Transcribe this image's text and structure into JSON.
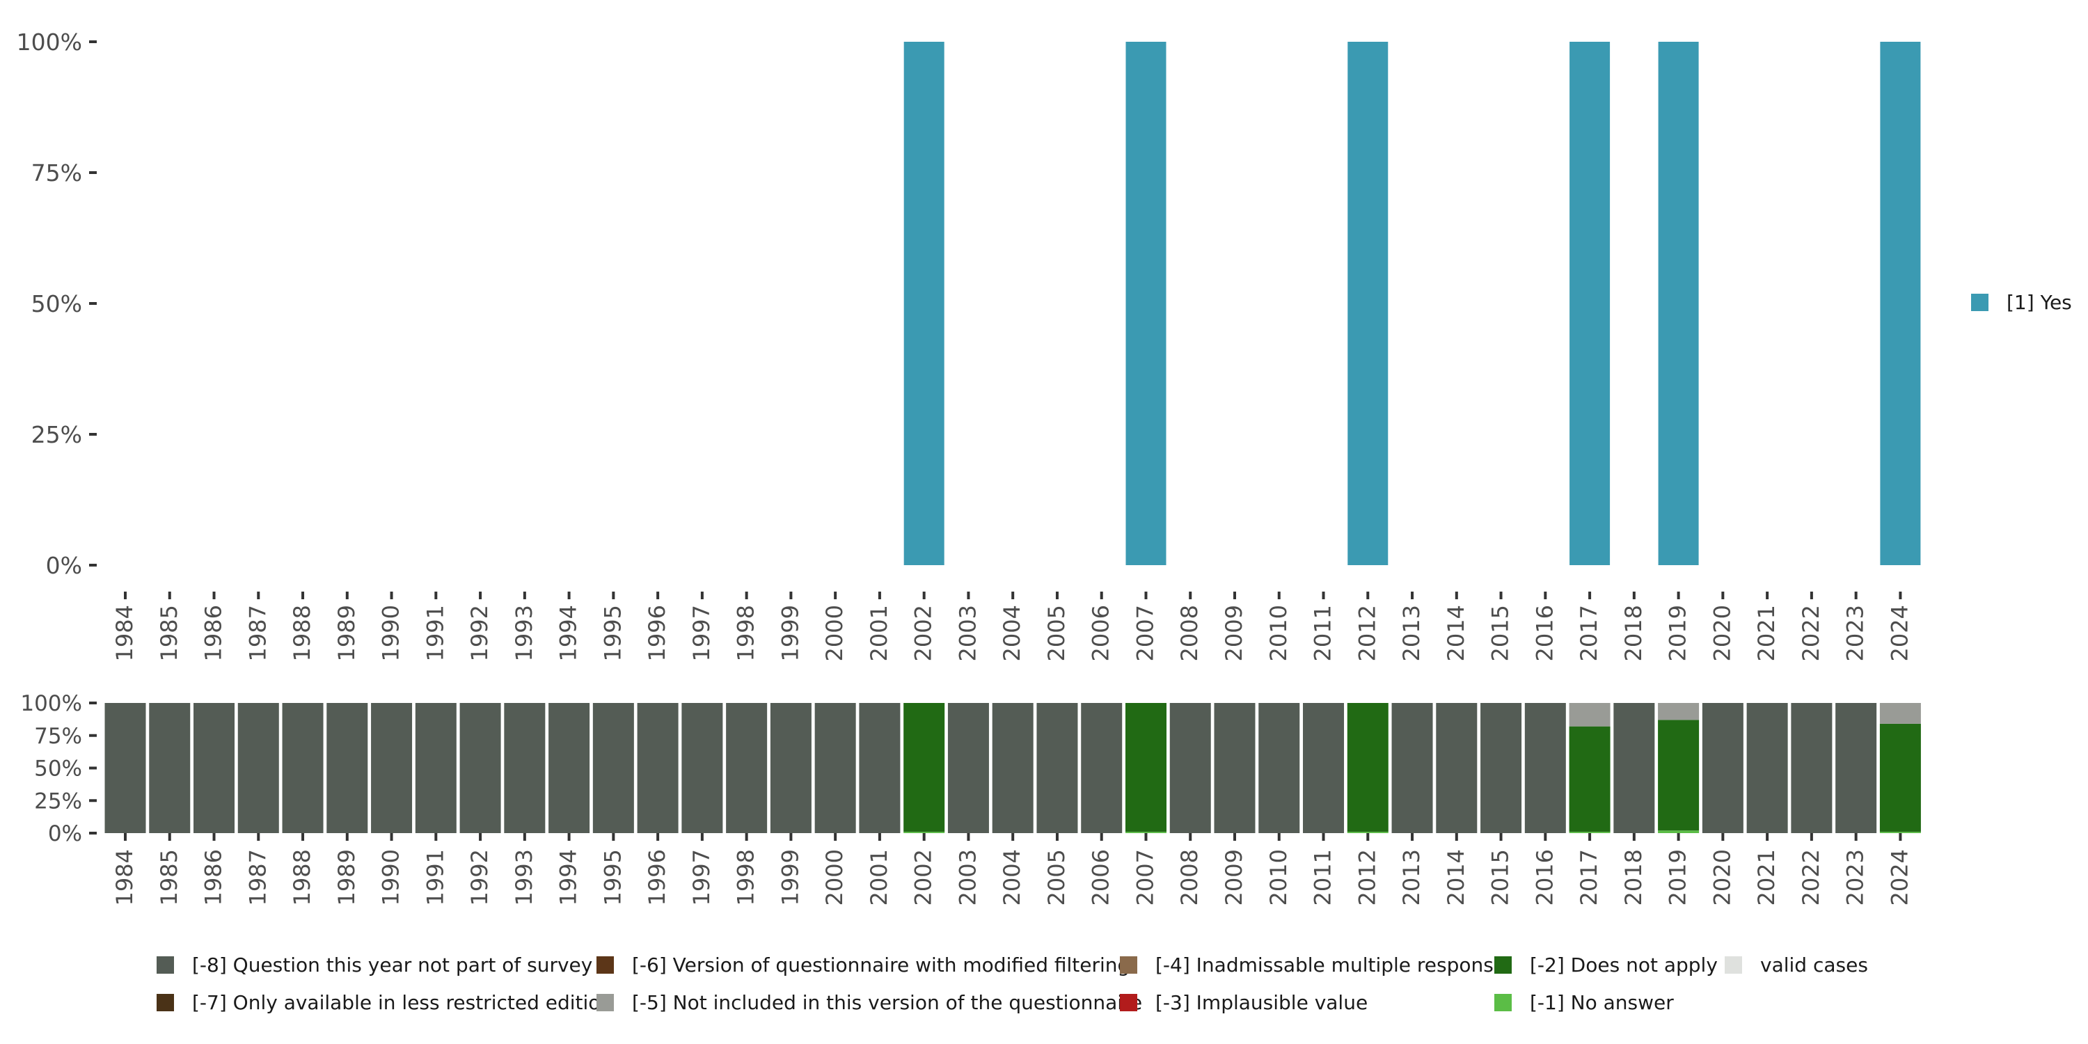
{
  "chart_data": [
    {
      "type": "bar",
      "stacked": true,
      "categories": [
        "1984",
        "1985",
        "1986",
        "1987",
        "1988",
        "1989",
        "1990",
        "1991",
        "1992",
        "1993",
        "1994",
        "1995",
        "1996",
        "1997",
        "1998",
        "1999",
        "2000",
        "2001",
        "2002",
        "2003",
        "2004",
        "2005",
        "2006",
        "2007",
        "2008",
        "2009",
        "2010",
        "2011",
        "2012",
        "2013",
        "2014",
        "2015",
        "2016",
        "2017",
        "2018",
        "2019",
        "2020",
        "2021",
        "2022",
        "2023",
        "2024"
      ],
      "series": [
        {
          "name": "[1] Yes",
          "color": "#3b9ab2",
          "values": [
            0,
            0,
            0,
            0,
            0,
            0,
            0,
            0,
            0,
            0,
            0,
            0,
            0,
            0,
            0,
            0,
            0,
            0,
            100,
            0,
            0,
            0,
            0,
            100,
            0,
            0,
            0,
            0,
            100,
            0,
            0,
            0,
            0,
            100,
            0,
            100,
            0,
            0,
            0,
            0,
            100
          ]
        }
      ],
      "yticks": [
        "0%",
        "25%",
        "50%",
        "75%",
        "100%"
      ],
      "ylim": [
        0,
        100
      ],
      "legend_position": "right"
    },
    {
      "type": "bar",
      "stacked": true,
      "categories": [
        "1984",
        "1985",
        "1986",
        "1987",
        "1988",
        "1989",
        "1990",
        "1991",
        "1992",
        "1993",
        "1994",
        "1995",
        "1996",
        "1997",
        "1998",
        "1999",
        "2000",
        "2001",
        "2002",
        "2003",
        "2004",
        "2005",
        "2006",
        "2007",
        "2008",
        "2009",
        "2010",
        "2011",
        "2012",
        "2013",
        "2014",
        "2015",
        "2016",
        "2017",
        "2018",
        "2019",
        "2020",
        "2021",
        "2022",
        "2023",
        "2024"
      ],
      "series": [
        {
          "name": "[-1] No answer",
          "color": "#5bbd46",
          "values": [
            0,
            0,
            0,
            0,
            0,
            0,
            0,
            0,
            0,
            0,
            0,
            0,
            0,
            0,
            0,
            0,
            0,
            0,
            1,
            0,
            0,
            0,
            0,
            1,
            0,
            0,
            0,
            0,
            1,
            0,
            0,
            0,
            0,
            1,
            0,
            2,
            0,
            0,
            0,
            0,
            1
          ]
        },
        {
          "name": "[-2] Does not apply",
          "color": "#216a14",
          "values": [
            0,
            0,
            0,
            0,
            0,
            0,
            0,
            0,
            0,
            0,
            0,
            0,
            0,
            0,
            0,
            0,
            0,
            0,
            99,
            0,
            0,
            0,
            0,
            99,
            0,
            0,
            0,
            0,
            99,
            0,
            0,
            0,
            0,
            81,
            0,
            85,
            0,
            0,
            0,
            0,
            83
          ]
        },
        {
          "name": "[-5] Not included in this version of the questionnaire",
          "color": "#999b96",
          "values": [
            0,
            0,
            0,
            0,
            0,
            0,
            0,
            0,
            0,
            0,
            0,
            0,
            0,
            0,
            0,
            0,
            0,
            0,
            0,
            0,
            0,
            0,
            0,
            0,
            0,
            0,
            0,
            0,
            0,
            0,
            0,
            0,
            0,
            18,
            0,
            13,
            0,
            0,
            0,
            0,
            16
          ]
        },
        {
          "name": "[-8] Question this year not part of survey",
          "color": "#545c55",
          "values": [
            100,
            100,
            100,
            100,
            100,
            100,
            100,
            100,
            100,
            100,
            100,
            100,
            100,
            100,
            100,
            100,
            100,
            100,
            0,
            100,
            100,
            100,
            100,
            0,
            100,
            100,
            100,
            100,
            0,
            100,
            100,
            100,
            100,
            0,
            100,
            0,
            100,
            100,
            100,
            100,
            0
          ]
        }
      ],
      "yticks": [
        "0%",
        "25%",
        "50%",
        "75%",
        "100%"
      ],
      "ylim": [
        0,
        100
      ],
      "legend_position": "bottom"
    }
  ],
  "legend_top": {
    "label": "[1] Yes",
    "color": "#3b9ab2"
  },
  "legend_bottom": [
    {
      "label": "[-8] Question this year not part of survey",
      "color": "#545c55"
    },
    {
      "label": "[-7] Only available in less restricted edition",
      "color": "#4a3217"
    },
    {
      "label": "[-6] Version of questionnaire with modified filtering",
      "color": "#5c3618"
    },
    {
      "label": "[-5] Not included in this version of the questionnaire",
      "color": "#999b96"
    },
    {
      "label": "[-4] Inadmissable multiple response",
      "color": "#8a6a4b"
    },
    {
      "label": "[-3] Implausible value",
      "color": "#b21c1c"
    },
    {
      "label": "[-2] Does not apply",
      "color": "#216a14"
    },
    {
      "label": "[-1] No answer",
      "color": "#5bbd46"
    },
    {
      "label": "valid cases",
      "color": "#dfe1de"
    }
  ]
}
